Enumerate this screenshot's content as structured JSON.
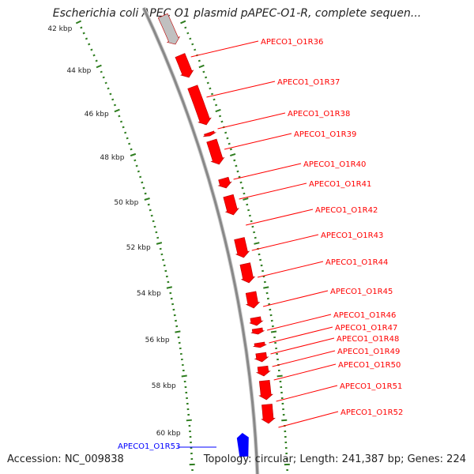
{
  "title": "Escherichia coli APEC O1 plasmid pAPEC-O1-R, complete sequen...",
  "accession": "Accession: NC_009838",
  "topology": "Topology: circular; Length: 241,387 bp; Genes: 224",
  "colors": {
    "forward": "#ff0000",
    "reverse": "#0000ff",
    "backbone": "#888888",
    "ticks": "#2e7d1f",
    "partial": "#c0c0c0"
  },
  "ticks": [
    "42 kbp",
    "44 kbp",
    "46 kbp",
    "48 kbp",
    "50 kbp",
    "52 kbp",
    "54 kbp",
    "56 kbp",
    "58 kbp",
    "60 kbp"
  ],
  "genes": [
    {
      "label": "APECO1_O1R36",
      "strand": "forward"
    },
    {
      "label": "APECO1_O1R37",
      "strand": "forward"
    },
    {
      "label": "APECO1_O1R38",
      "strand": "forward"
    },
    {
      "label": "APECO1_O1R39",
      "strand": "forward"
    },
    {
      "label": "APECO1_O1R40",
      "strand": "forward"
    },
    {
      "label": "APECO1_O1R41",
      "strand": "forward"
    },
    {
      "label": "APECO1_O1R42",
      "strand": "forward"
    },
    {
      "label": "APECO1_O1R43",
      "strand": "forward"
    },
    {
      "label": "APECO1_O1R44",
      "strand": "forward"
    },
    {
      "label": "APECO1_O1R45",
      "strand": "forward"
    },
    {
      "label": "APECO1_O1R46",
      "strand": "forward"
    },
    {
      "label": "APECO1_O1R47",
      "strand": "forward"
    },
    {
      "label": "APECO1_O1R48",
      "strand": "forward"
    },
    {
      "label": "APECO1_O1R49",
      "strand": "forward"
    },
    {
      "label": "APECO1_O1R50",
      "strand": "forward"
    },
    {
      "label": "APECO1_O1R51",
      "strand": "forward"
    },
    {
      "label": "APECO1_O1R52",
      "strand": "forward"
    },
    {
      "label": "APECO1_O1R53",
      "strand": "reverse"
    }
  ]
}
